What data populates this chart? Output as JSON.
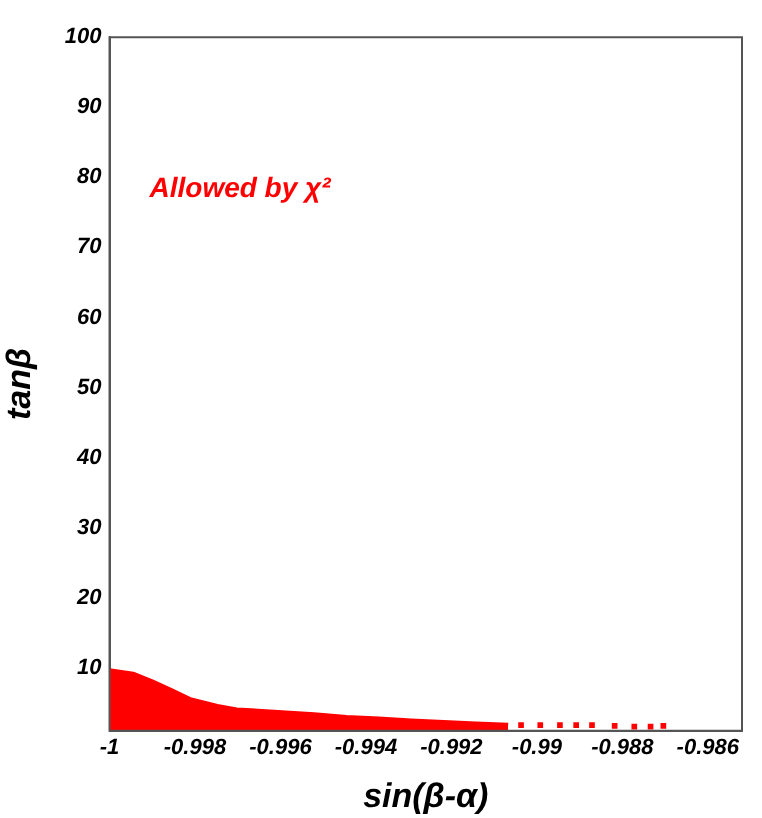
{
  "chart_data": {
    "type": "area",
    "xlabel": "sin(β-α)",
    "ylabel": "tanβ",
    "annotations": [
      "Allowed by χ²"
    ],
    "xlim": [
      -1,
      -0.9852
    ],
    "xticks": [
      {
        "value": -1,
        "label": "-1"
      },
      {
        "value": -0.998,
        "label": "-0.998"
      },
      {
        "value": -0.996,
        "label": "-0.996"
      },
      {
        "value": -0.994,
        "label": "-0.994"
      },
      {
        "value": -0.992,
        "label": "-0.992"
      },
      {
        "value": -0.99,
        "label": "-0.99"
      },
      {
        "value": -0.988,
        "label": "-0.988"
      },
      {
        "value": -0.986,
        "label": "-0.986"
      }
    ],
    "ylim": [
      1,
      100
    ],
    "yticks": [
      10,
      20,
      30,
      40,
      50,
      60,
      70,
      80,
      90,
      100
    ],
    "grid": false,
    "legend": false,
    "series": [
      {
        "color": "#ff0000",
        "x": [
          -1,
          -0.99944,
          -0.99899,
          -0.99853,
          -0.99808,
          -0.99747,
          -0.99702,
          -0.99596,
          -0.99521,
          -0.99445,
          -0.9937,
          -0.99294,
          -0.99218,
          -0.99143,
          -0.99067
        ],
        "values": [
          9.8,
          9.3,
          8.2,
          6.9,
          5.6,
          4.7,
          4.2,
          3.8,
          3.5,
          3.1,
          2.9,
          2.6,
          2.4,
          2.2,
          2.0
        ]
      },
      {
        "type": "scatter",
        "color": "#ff0000",
        "marker": "square",
        "x": [
          -0.99037,
          -0.98992,
          -0.98946,
          -0.98908,
          -0.98871,
          -0.98818,
          -0.98772,
          -0.98734,
          -0.98704
        ],
        "values": [
          1.8,
          1.8,
          1.8,
          1.8,
          1.8,
          1.7,
          1.6,
          1.6,
          1.7
        ]
      }
    ]
  }
}
